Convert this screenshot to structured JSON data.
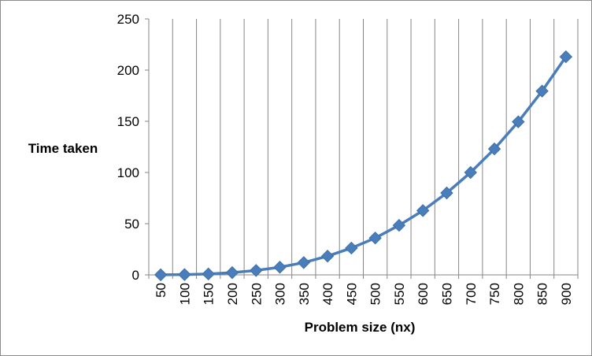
{
  "chart_data": {
    "type": "line",
    "title": "",
    "xlabel": "Problem size (nx)",
    "ylabel": "Time taken",
    "categories": [
      "50",
      "100",
      "150",
      "200",
      "250",
      "300",
      "350",
      "400",
      "450",
      "500",
      "550",
      "600",
      "650",
      "700",
      "750",
      "800",
      "850",
      "900"
    ],
    "series": [
      {
        "values": [
          0.1,
          0.3,
          0.9,
          2.2,
          4.3,
          7.5,
          12.0,
          18.3,
          26.2,
          36.0,
          48.4,
          62.8,
          80.0,
          100.0,
          123.0,
          149.5,
          179.5,
          213.0
        ],
        "color": "#4a7ebb",
        "marker": "diamond"
      }
    ],
    "yticks": [
      "0",
      "50",
      "100",
      "150",
      "200",
      "250"
    ],
    "ylim": [
      0,
      250
    ],
    "grid": {
      "vertical": true,
      "horizontal": false
    },
    "legend": "none"
  }
}
